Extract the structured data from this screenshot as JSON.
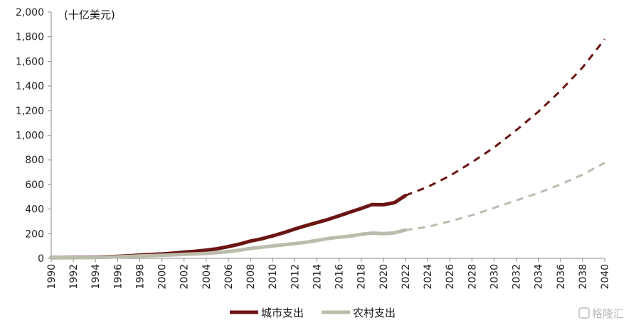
{
  "chart_data": {
    "type": "line",
    "unit_label": "(十亿美元)",
    "ylim": [
      0,
      2000
    ],
    "y_ticks": [
      "0",
      "200",
      "400",
      "600",
      "800",
      "1,000",
      "1,200",
      "1,400",
      "1,600",
      "1,800",
      "2,000"
    ],
    "y_tick_values": [
      0,
      200,
      400,
      600,
      800,
      1000,
      1200,
      1400,
      1600,
      1800,
      2000
    ],
    "xlim": [
      1990,
      2040
    ],
    "x_ticks": [
      "1990",
      "1992",
      "1994",
      "1996",
      "1998",
      "2000",
      "2002",
      "2004",
      "2006",
      "2008",
      "2010",
      "2012",
      "2014",
      "2016",
      "2018",
      "2020",
      "2022",
      "2024",
      "2026",
      "2028",
      "2030",
      "2032",
      "2034",
      "2036",
      "2038",
      "2040"
    ],
    "x_tick_values": [
      1990,
      1992,
      1994,
      1996,
      1998,
      2000,
      2002,
      2004,
      2006,
      2008,
      2010,
      2012,
      2014,
      2016,
      2018,
      2020,
      2022,
      2024,
      2026,
      2028,
      2030,
      2032,
      2034,
      2036,
      2038,
      2040
    ],
    "grid": false,
    "legend_position": "bottom",
    "series": [
      {
        "name": "城市支出",
        "color": "#6b1512",
        "x": [
          1990,
          1991,
          1992,
          1993,
          1994,
          1995,
          1996,
          1997,
          1998,
          1999,
          2000,
          2001,
          2002,
          2003,
          2004,
          2005,
          2006,
          2007,
          2008,
          2009,
          2010,
          2011,
          2012,
          2013,
          2014,
          2015,
          2016,
          2017,
          2018,
          2019,
          2020,
          2021,
          2022
        ],
        "values": [
          5,
          6,
          7,
          8,
          9,
          12,
          16,
          20,
          26,
          31,
          35,
          42,
          50,
          57,
          66,
          78,
          95,
          115,
          140,
          158,
          182,
          208,
          238,
          265,
          290,
          315,
          345,
          375,
          405,
          437,
          435,
          452,
          510
        ],
        "projection_x": [
          2022,
          2024,
          2026,
          2028,
          2030,
          2032,
          2034,
          2036,
          2038,
          2040
        ],
        "projection_values": [
          510,
          580,
          670,
          780,
          900,
          1040,
          1190,
          1360,
          1550,
          1780
        ]
      },
      {
        "name": "农村支出",
        "color": "#bcbcac",
        "x": [
          1990,
          1991,
          1992,
          1993,
          1994,
          1995,
          1996,
          1997,
          1998,
          1999,
          2000,
          2001,
          2002,
          2003,
          2004,
          2005,
          2006,
          2007,
          2008,
          2009,
          2010,
          2011,
          2012,
          2013,
          2014,
          2015,
          2016,
          2017,
          2018,
          2019,
          2020,
          2021,
          2022
        ],
        "values": [
          3,
          4,
          5,
          6,
          7,
          9,
          12,
          15,
          19,
          22,
          24,
          28,
          32,
          36,
          40,
          46,
          55,
          66,
          80,
          90,
          100,
          110,
          120,
          130,
          145,
          160,
          172,
          180,
          195,
          205,
          200,
          207,
          230
        ],
        "projection_x": [
          2022,
          2024,
          2026,
          2028,
          2030,
          2032,
          2034,
          2036,
          2038,
          2040
        ],
        "projection_values": [
          230,
          255,
          300,
          350,
          410,
          470,
          530,
          600,
          680,
          775
        ]
      }
    ]
  },
  "watermark": "格隆汇"
}
